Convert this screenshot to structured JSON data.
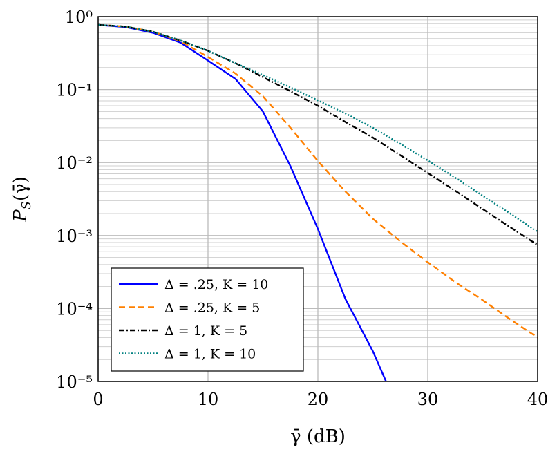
{
  "chart_data": {
    "type": "line",
    "title": "",
    "xlabel": "γ̄ (dB)",
    "ylabel": "P_S(γ̄)",
    "xlim": [
      0,
      40
    ],
    "ylim": [
      1e-05,
      1
    ],
    "yscale": "log",
    "grid": true,
    "legend_position": "bottom-left",
    "xticks": [
      0,
      10,
      20,
      30,
      40
    ],
    "xticklabels": [
      "0",
      "10",
      "20",
      "30",
      "40"
    ],
    "yticks": [
      1,
      0.1,
      0.01,
      0.001,
      0.0001,
      1e-05
    ],
    "yticklabels": [
      "10⁰",
      "10⁻¹",
      "10⁻²",
      "10⁻³",
      "10⁻⁴",
      "10⁻⁵"
    ],
    "series": [
      {
        "name": "Δ = .25, K = 10",
        "color": "#0000ff",
        "style": "solid",
        "x": [
          0,
          2.5,
          5,
          7.5,
          10,
          12.5,
          15,
          17.5,
          20,
          22.5,
          25,
          26.2
        ],
        "y": [
          0.77,
          0.72,
          0.6,
          0.44,
          0.25,
          0.14,
          0.05,
          0.0089,
          0.00123,
          0.000135,
          2.6e-05,
          1e-05
        ]
      },
      {
        "name": "Δ = .25, K = 5",
        "color": "#ff8000",
        "style": "dashed",
        "x": [
          0,
          2.5,
          5,
          7.5,
          10,
          12.5,
          15,
          17.5,
          20,
          22.5,
          25,
          27.5,
          30,
          32.5,
          35,
          37.5,
          40
        ],
        "y": [
          0.77,
          0.73,
          0.62,
          0.46,
          0.28,
          0.166,
          0.081,
          0.03,
          0.0105,
          0.004,
          0.0017,
          0.00083,
          0.00043,
          0.00023,
          0.00013,
          7.1e-05,
          4e-05
        ]
      },
      {
        "name": "Δ = 1, K = 5",
        "color": "#000000",
        "style": "dashdot",
        "x": [
          0,
          2.5,
          5,
          7.5,
          10,
          12.5,
          15,
          17.5,
          20,
          22.5,
          25,
          27.5,
          30,
          32.5,
          35,
          37.5,
          40
        ],
        "y": [
          0.77,
          0.73,
          0.62,
          0.47,
          0.34,
          0.23,
          0.148,
          0.095,
          0.06,
          0.036,
          0.022,
          0.0126,
          0.0072,
          0.0041,
          0.0023,
          0.0013,
          0.00074
        ]
      },
      {
        "name": "Δ = 1, K = 10",
        "color": "#008080",
        "style": "dotted",
        "x": [
          0,
          2.5,
          5,
          7.5,
          10,
          12.5,
          15,
          17.5,
          20,
          22.5,
          25,
          27.5,
          30,
          32.5,
          35,
          37.5,
          40
        ],
        "y": [
          0.77,
          0.73,
          0.62,
          0.47,
          0.34,
          0.23,
          0.158,
          0.107,
          0.071,
          0.047,
          0.03,
          0.018,
          0.0107,
          0.0062,
          0.0035,
          0.002,
          0.00112
        ]
      }
    ]
  }
}
